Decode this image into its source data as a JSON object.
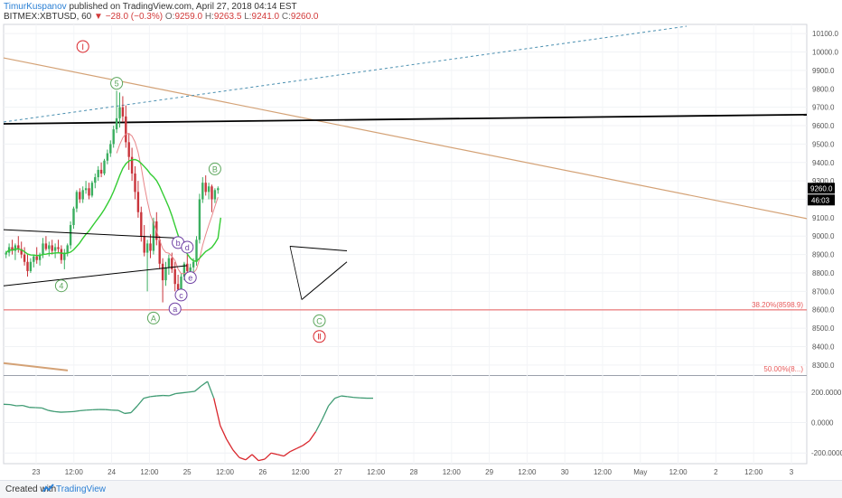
{
  "header": {
    "author": "TimurKuspanov",
    "published": "published on TradingView.com, April 27, 2018 04:14 EST",
    "symbol": "BITMEX:XBTUSD, 60",
    "change": "−28.0 (−0.3%)",
    "ohlc": {
      "o": "9259.0",
      "h": "9263.5",
      "l": "9241.0",
      "c": "9260.0"
    },
    "o_label": "O:",
    "h_label": "H:",
    "l_label": "L:",
    "c_label": "C:"
  },
  "footer": {
    "created_with": "Created with",
    "brand": "TradingView"
  },
  "colors": {
    "up": "#3aae5f",
    "down": "#c9343b",
    "ma_fast": "#e8868a",
    "ma_slow": "#33cc33",
    "trend_brown": "#d4a276",
    "trend_black": "#000000",
    "dashed_blue": "#4a8fb0",
    "fib_red": "#e85b5b",
    "wave_green": "#5ba65b",
    "wave_purple": "#6e3fa3",
    "wave_red": "#d9262c",
    "osc_green": "#3f9b73",
    "osc_red": "#d9262c"
  },
  "chart_data": [
    {
      "type": "candlestick",
      "symbol": "BITMEX:XBTUSD",
      "interval": "60",
      "ylim": [
        8250,
        10150
      ],
      "yticks": [
        "10100.0",
        "10000.0",
        "9900.0",
        "9800.0",
        "9700.0",
        "9600.0",
        "9500.0",
        "9400.0",
        "9300.0",
        "9200.0",
        "9100.0",
        "9000.0",
        "8900.0",
        "8800.0",
        "8700.0",
        "8600.0",
        "8500.0",
        "8400.0",
        "8300.0"
      ],
      "xticks": [
        "23",
        "12:00",
        "24",
        "12:00",
        "25",
        "12:00",
        "26",
        "12:00",
        "27",
        "12:00",
        "28",
        "12:00",
        "29",
        "12:00",
        "30",
        "12:00",
        "May",
        "12:00",
        "2",
        "12:00",
        "3"
      ],
      "last_price": "9260.0",
      "countdown": "46:03",
      "fib_label": "38.20%(8598.9)",
      "fib_level": 8598.9,
      "hidden_fib_label": "50.00%(8...)",
      "candles": [
        [
          8900,
          8920,
          8880,
          8910
        ],
        [
          8910,
          8960,
          8890,
          8940
        ],
        [
          8940,
          8980,
          8900,
          8920
        ],
        [
          8920,
          8960,
          8870,
          8950
        ],
        [
          8950,
          9000,
          8910,
          8930
        ],
        [
          8930,
          8970,
          8880,
          8900
        ],
        [
          8900,
          8940,
          8840,
          8860
        ],
        [
          8860,
          8900,
          8780,
          8810
        ],
        [
          8810,
          8880,
          8800,
          8860
        ],
        [
          8860,
          8900,
          8830,
          8890
        ],
        [
          8890,
          8940,
          8850,
          8870
        ],
        [
          8870,
          8910,
          8840,
          8900
        ],
        [
          8900,
          8990,
          8880,
          8960
        ],
        [
          8960,
          9000,
          8920,
          8930
        ],
        [
          8930,
          8970,
          8890,
          8950
        ],
        [
          8950,
          8980,
          8900,
          8920
        ],
        [
          8920,
          8960,
          8880,
          8940
        ],
        [
          8940,
          8980,
          8910,
          8930
        ],
        [
          8930,
          8950,
          8850,
          8870
        ],
        [
          8870,
          8930,
          8820,
          8910
        ],
        [
          8910,
          8960,
          8890,
          8950
        ],
        [
          8950,
          9080,
          8930,
          9060
        ],
        [
          9060,
          9160,
          9040,
          9150
        ],
        [
          9150,
          9250,
          9130,
          9240
        ],
        [
          9240,
          9260,
          9180,
          9200
        ],
        [
          9200,
          9270,
          9180,
          9250
        ],
        [
          9250,
          9300,
          9230,
          9260
        ],
        [
          9260,
          9290,
          9200,
          9220
        ],
        [
          9220,
          9300,
          9210,
          9290
        ],
        [
          9290,
          9340,
          9260,
          9320
        ],
        [
          9320,
          9380,
          9300,
          9360
        ],
        [
          9360,
          9400,
          9320,
          9340
        ],
        [
          9340,
          9420,
          9330,
          9410
        ],
        [
          9410,
          9470,
          9390,
          9450
        ],
        [
          9450,
          9520,
          9430,
          9500
        ],
        [
          9500,
          9600,
          9480,
          9580
        ],
        [
          9580,
          9790,
          9560,
          9640
        ],
        [
          9640,
          9780,
          9590,
          9700
        ],
        [
          9700,
          9760,
          9620,
          9650
        ],
        [
          9650,
          9710,
          9480,
          9510
        ],
        [
          9510,
          9560,
          9360,
          9430
        ],
        [
          9430,
          9480,
          9300,
          9340
        ],
        [
          9340,
          9380,
          9200,
          9240
        ],
        [
          9240,
          9300,
          9100,
          9130
        ],
        [
          9130,
          9160,
          8970,
          9000
        ],
        [
          9000,
          9060,
          8890,
          8910
        ],
        [
          8910,
          8980,
          8700,
          8960
        ],
        [
          8960,
          9010,
          8880,
          8920
        ],
        [
          8920,
          9100,
          8900,
          9080
        ],
        [
          9080,
          9130,
          8950,
          8980
        ],
        [
          8980,
          9000,
          8820,
          8850
        ],
        [
          8850,
          8880,
          8640,
          8760
        ],
        [
          8760,
          8860,
          8730,
          8830
        ],
        [
          8830,
          8900,
          8790,
          8880
        ],
        [
          8880,
          8910,
          8800,
          8820
        ],
        [
          8820,
          8860,
          8700,
          8740
        ],
        [
          8740,
          8790,
          8660,
          8710
        ],
        [
          8710,
          8800,
          8690,
          8780
        ],
        [
          8780,
          8860,
          8760,
          8850
        ],
        [
          8850,
          8900,
          8790,
          8810
        ],
        [
          8810,
          8850,
          8760,
          8830
        ],
        [
          8830,
          8880,
          8800,
          8860
        ],
        [
          8860,
          9000,
          8840,
          8980
        ],
        [
          8980,
          9230,
          8960,
          9200
        ],
        [
          9200,
          9320,
          9180,
          9290
        ],
        [
          9290,
          9330,
          9220,
          9240
        ],
        [
          9240,
          9290,
          9200,
          9270
        ],
        [
          9270,
          9280,
          9130,
          9200
        ],
        [
          9200,
          9260,
          9180,
          9250
        ],
        [
          9250,
          9270,
          9230,
          9260
        ]
      ],
      "wave_labels": [
        {
          "text": "Ⅰ",
          "color": "wave_red",
          "bar": 25,
          "price": 10030
        },
        {
          "text": "5",
          "color": "wave_green",
          "bar": 36,
          "price": 9830
        },
        {
          "text": "4",
          "color": "wave_green",
          "bar": 18,
          "price": 8730
        },
        {
          "text": "A",
          "color": "wave_green",
          "bar": 48,
          "price": 8555
        },
        {
          "text": "B",
          "color": "wave_green",
          "bar": 68,
          "price": 9365
        },
        {
          "text": "C",
          "color": "wave_green",
          "bar": 102,
          "price": 8540
        },
        {
          "text": "Ⅱ",
          "color": "wave_red",
          "bar": 102,
          "price": 8455
        },
        {
          "text": "a",
          "color": "wave_purple",
          "bar": 55,
          "price": 8605
        },
        {
          "text": "b",
          "color": "wave_purple",
          "bar": 56,
          "price": 8965
        },
        {
          "text": "c",
          "color": "wave_purple",
          "bar": 57,
          "price": 8680
        },
        {
          "text": "d",
          "color": "wave_purple",
          "bar": 59,
          "price": 8940
        },
        {
          "text": "e",
          "color": "wave_purple",
          "bar": 60,
          "price": 8775
        }
      ]
    },
    {
      "type": "line",
      "name": "oscillator",
      "ylim": [
        -270,
        300
      ],
      "yticks": [
        "200.0000",
        "0.0000",
        "-200.0000"
      ],
      "values": [
        120,
        118,
        110,
        112,
        100,
        98,
        96,
        80,
        72,
        68,
        70,
        72,
        78,
        82,
        84,
        86,
        85,
        82,
        80,
        60,
        65,
        110,
        160,
        170,
        175,
        178,
        176,
        190,
        195,
        200,
        205,
        240,
        270,
        160,
        -20,
        -110,
        -180,
        -230,
        -245,
        -210,
        -250,
        -240,
        -200,
        -210,
        -220,
        -190,
        -170,
        -150,
        -120,
        -60,
        20,
        110,
        160,
        175,
        170,
        165,
        162,
        160,
        160
      ]
    }
  ]
}
